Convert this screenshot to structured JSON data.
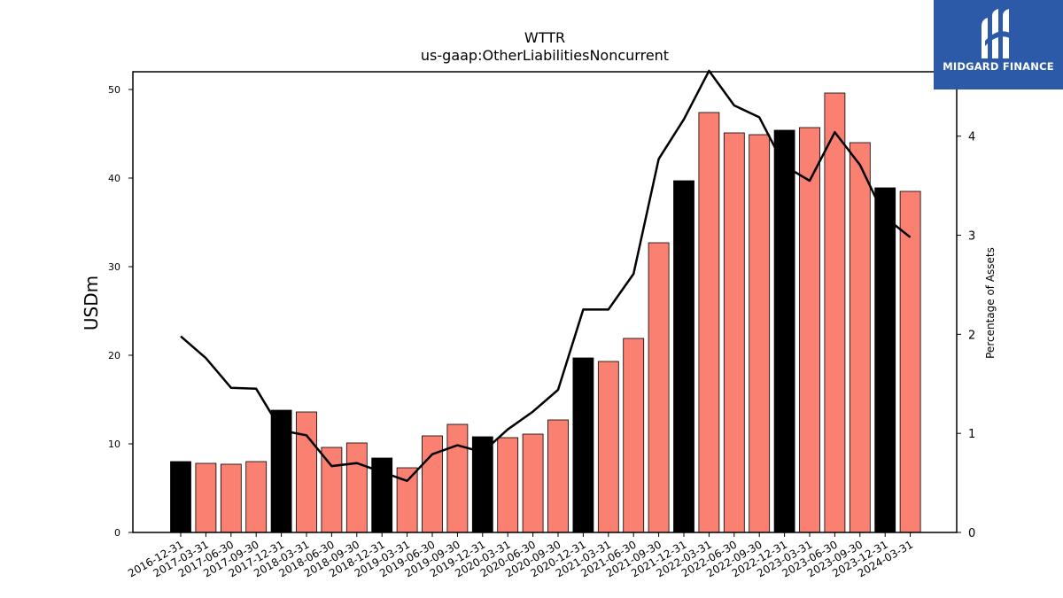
{
  "brand": {
    "name": "MIDGARD FINANCE",
    "color": "#2c5aa8"
  },
  "chart_data": {
    "type": "bar",
    "title": "WTTR",
    "subtitle": "us-gaap:OtherLiabilitiesNoncurrent",
    "ylabel": "USDm",
    "y2label": "Percentage of Assets",
    "ylim": [
      0,
      52
    ],
    "y2lim": [
      0,
      4.65
    ],
    "yticks": [
      0,
      10,
      20,
      30,
      40,
      50
    ],
    "y2ticks": [
      0,
      1,
      2,
      3,
      4
    ],
    "grid": false,
    "categories": [
      "2016-12-31",
      "2017-03-31",
      "2017-06-30",
      "2017-09-30",
      "2017-12-31",
      "2018-03-31",
      "2018-06-30",
      "2018-09-30",
      "2018-12-31",
      "2019-03-31",
      "2019-06-30",
      "2019-09-30",
      "2019-12-31",
      "2020-03-31",
      "2020-06-30",
      "2020-09-30",
      "2020-12-31",
      "2021-03-31",
      "2021-06-30",
      "2021-09-30",
      "2021-12-31",
      "2022-03-31",
      "2022-06-30",
      "2022-09-30",
      "2022-12-31",
      "2023-03-31",
      "2023-06-30",
      "2023-09-30",
      "2023-12-31",
      "2024-03-31"
    ],
    "bar_colors": {
      "annual": "#000000",
      "quarterly": "#fa8072"
    },
    "line_color": "#000000",
    "series": [
      {
        "type": "bar",
        "axis": "left",
        "values": [
          8.0,
          7.8,
          7.7,
          8.0,
          13.8,
          13.6,
          9.6,
          10.1,
          8.4,
          7.3,
          10.9,
          12.2,
          10.8,
          10.7,
          11.1,
          12.7,
          19.7,
          19.3,
          21.9,
          32.7,
          39.7,
          47.4,
          45.1,
          44.9,
          45.4,
          45.7,
          49.6,
          44.0,
          38.9,
          38.5
        ],
        "annual": [
          true,
          false,
          false,
          false,
          true,
          false,
          false,
          false,
          true,
          false,
          false,
          false,
          true,
          false,
          false,
          false,
          true,
          false,
          false,
          false,
          true,
          false,
          false,
          false,
          true,
          false,
          false,
          false,
          true,
          false
        ]
      },
      {
        "type": "line",
        "axis": "right",
        "values": [
          1.98,
          1.76,
          1.46,
          1.45,
          1.03,
          0.98,
          0.67,
          0.7,
          0.61,
          0.52,
          0.79,
          0.88,
          0.81,
          1.04,
          1.22,
          1.44,
          2.25,
          2.25,
          2.61,
          3.77,
          4.17,
          4.66,
          4.31,
          4.19,
          3.7,
          3.55,
          4.04,
          3.71,
          3.18,
          2.98
        ]
      }
    ]
  }
}
